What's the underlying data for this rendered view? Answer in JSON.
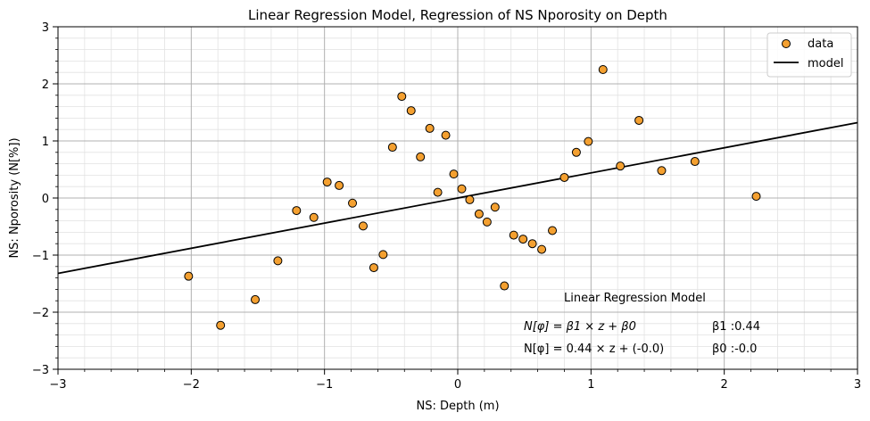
{
  "chart_data": {
    "type": "scatter",
    "title": "Linear Regression Model, Regression of NS Nporosity on Depth",
    "xlabel": "NS: Depth (m)",
    "ylabel": "NS: Nporosity (N[%])",
    "xlim": [
      -3,
      3
    ],
    "ylim": [
      -3,
      3
    ],
    "x_ticks": [
      "−3",
      "−2",
      "−1",
      "0",
      "1",
      "2",
      "3"
    ],
    "y_ticks": [
      "−3",
      "−2",
      "−1",
      "0",
      "1",
      "2",
      "3"
    ],
    "grid": true,
    "legend": {
      "placement": "top-right",
      "entries": [
        "data",
        "model"
      ]
    },
    "series": [
      {
        "name": "data",
        "kind": "scatter",
        "color": "#f4a030",
        "edge_color": "#000000",
        "points": [
          [
            -2.02,
            -1.37
          ],
          [
            -1.78,
            -2.23
          ],
          [
            -1.52,
            -1.78
          ],
          [
            -1.35,
            -1.1
          ],
          [
            -1.21,
            -0.22
          ],
          [
            -1.08,
            -0.34
          ],
          [
            -0.98,
            0.28
          ],
          [
            -0.89,
            0.22
          ],
          [
            -0.79,
            -0.09
          ],
          [
            -0.71,
            -0.49
          ],
          [
            -0.63,
            -1.22
          ],
          [
            -0.56,
            -0.99
          ],
          [
            -0.49,
            0.89
          ],
          [
            -0.42,
            1.78
          ],
          [
            -0.35,
            1.53
          ],
          [
            -0.28,
            0.72
          ],
          [
            -0.21,
            1.22
          ],
          [
            -0.15,
            0.1
          ],
          [
            -0.09,
            1.1
          ],
          [
            -0.03,
            0.42
          ],
          [
            0.03,
            0.16
          ],
          [
            0.09,
            -0.03
          ],
          [
            0.16,
            -0.28
          ],
          [
            0.22,
            -0.42
          ],
          [
            0.28,
            -0.16
          ],
          [
            0.35,
            -1.54
          ],
          [
            0.42,
            -0.65
          ],
          [
            0.49,
            -0.72
          ],
          [
            0.56,
            -0.8
          ],
          [
            0.63,
            -0.9
          ],
          [
            0.71,
            -0.57
          ],
          [
            0.8,
            0.36
          ],
          [
            0.89,
            0.8
          ],
          [
            0.98,
            0.99
          ],
          [
            1.09,
            2.25
          ],
          [
            1.22,
            0.56
          ],
          [
            1.36,
            1.36
          ],
          [
            1.53,
            0.48
          ],
          [
            1.78,
            0.64
          ],
          [
            2.24,
            0.03
          ]
        ]
      },
      {
        "name": "model",
        "kind": "line",
        "color": "#000000",
        "slope": 0.44,
        "intercept": 0.0
      }
    ],
    "annotations": {
      "heading": "Linear Regression Model",
      "equation_general": "N[φ] = β1 × z + β0",
      "equation_fitted": "N[φ] = 0.44 × z + (-0.0)",
      "beta1_label": "β1 :0.44",
      "beta0_label": "β0 :-0.0"
    }
  }
}
